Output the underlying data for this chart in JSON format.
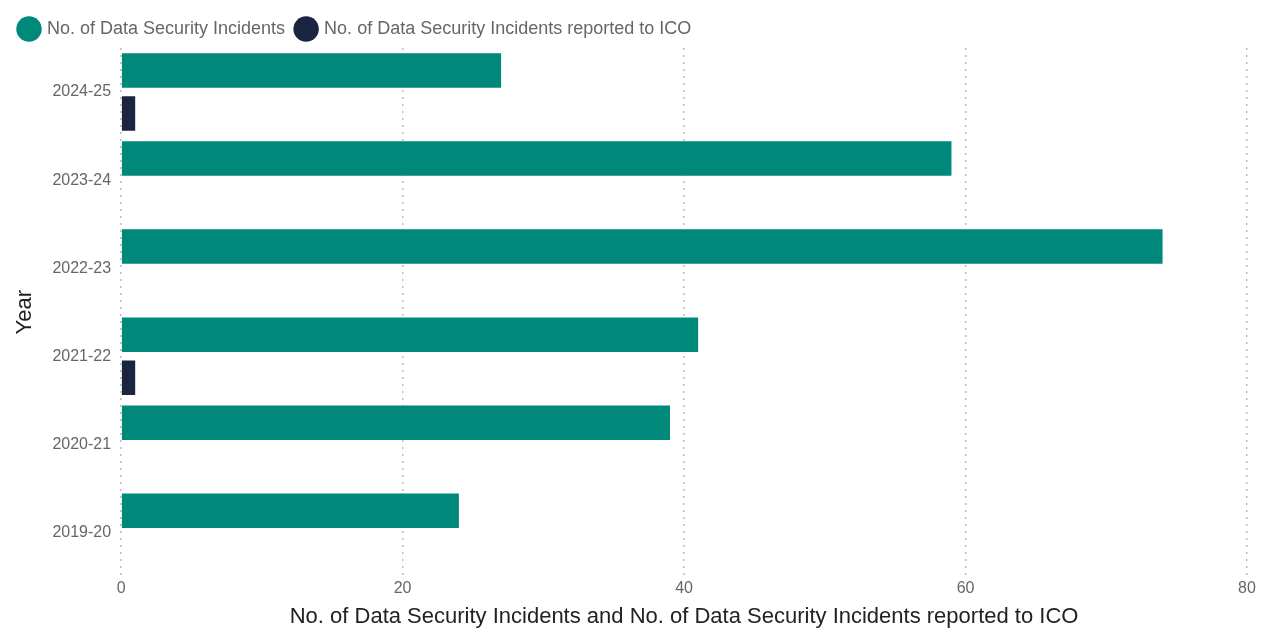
{
  "chart_data": {
    "type": "bar",
    "orientation": "horizontal",
    "xlabel": "No. of Data Security Incidents and No. of Data Security Incidents reported to ICO",
    "ylabel": "Year",
    "categories": [
      "2024-25",
      "2023-24",
      "2022-23",
      "2021-22",
      "2020-21",
      "2019-20"
    ],
    "series": [
      {
        "name": "No. of Data Security Incidents",
        "color": "#00897b",
        "values": [
          27,
          59,
          74,
          41,
          39,
          24
        ]
      },
      {
        "name": "No. of Data Security Incidents reported to ICO",
        "color": "#1b2541",
        "values": [
          1,
          0,
          0,
          1,
          0,
          0
        ]
      }
    ],
    "xlim": [
      0,
      80
    ],
    "xticks": [
      0,
      20,
      40,
      60,
      80
    ],
    "grid": "x",
    "legend": "top left"
  }
}
